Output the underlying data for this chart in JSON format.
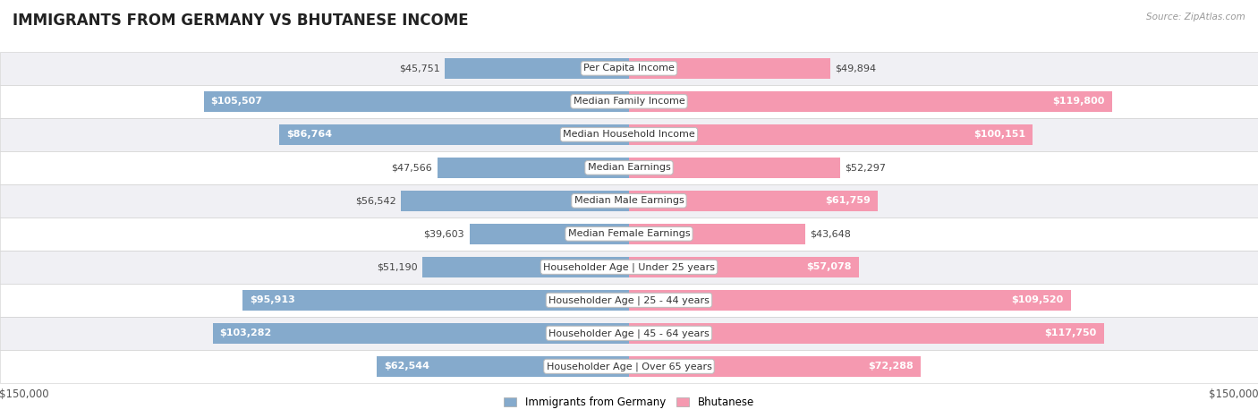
{
  "title": "IMMIGRANTS FROM GERMANY VS BHUTANESE INCOME",
  "source": "Source: ZipAtlas.com",
  "categories": [
    "Per Capita Income",
    "Median Family Income",
    "Median Household Income",
    "Median Earnings",
    "Median Male Earnings",
    "Median Female Earnings",
    "Householder Age | Under 25 years",
    "Householder Age | 25 - 44 years",
    "Householder Age | 45 - 64 years",
    "Householder Age | Over 65 years"
  ],
  "germany_values": [
    45751,
    105507,
    86764,
    47566,
    56542,
    39603,
    51190,
    95913,
    103282,
    62544
  ],
  "bhutanese_values": [
    49894,
    119800,
    100151,
    52297,
    61759,
    43648,
    57078,
    109520,
    117750,
    72288
  ],
  "germany_labels": [
    "$45,751",
    "$105,507",
    "$86,764",
    "$47,566",
    "$56,542",
    "$39,603",
    "$51,190",
    "$95,913",
    "$103,282",
    "$62,544"
  ],
  "bhutanese_labels": [
    "$49,894",
    "$119,800",
    "$100,151",
    "$52,297",
    "$61,759",
    "$43,648",
    "$57,078",
    "$109,520",
    "$117,750",
    "$72,288"
  ],
  "germany_color": "#85AACC",
  "bhutanese_color": "#F599B0",
  "max_value": 150000,
  "legend_germany": "Immigrants from Germany",
  "legend_bhutanese": "Bhutanese",
  "bar_height": 0.62,
  "title_fontsize": 12,
  "label_fontsize": 8,
  "category_fontsize": 8,
  "inside_label_threshold": 0.38
}
